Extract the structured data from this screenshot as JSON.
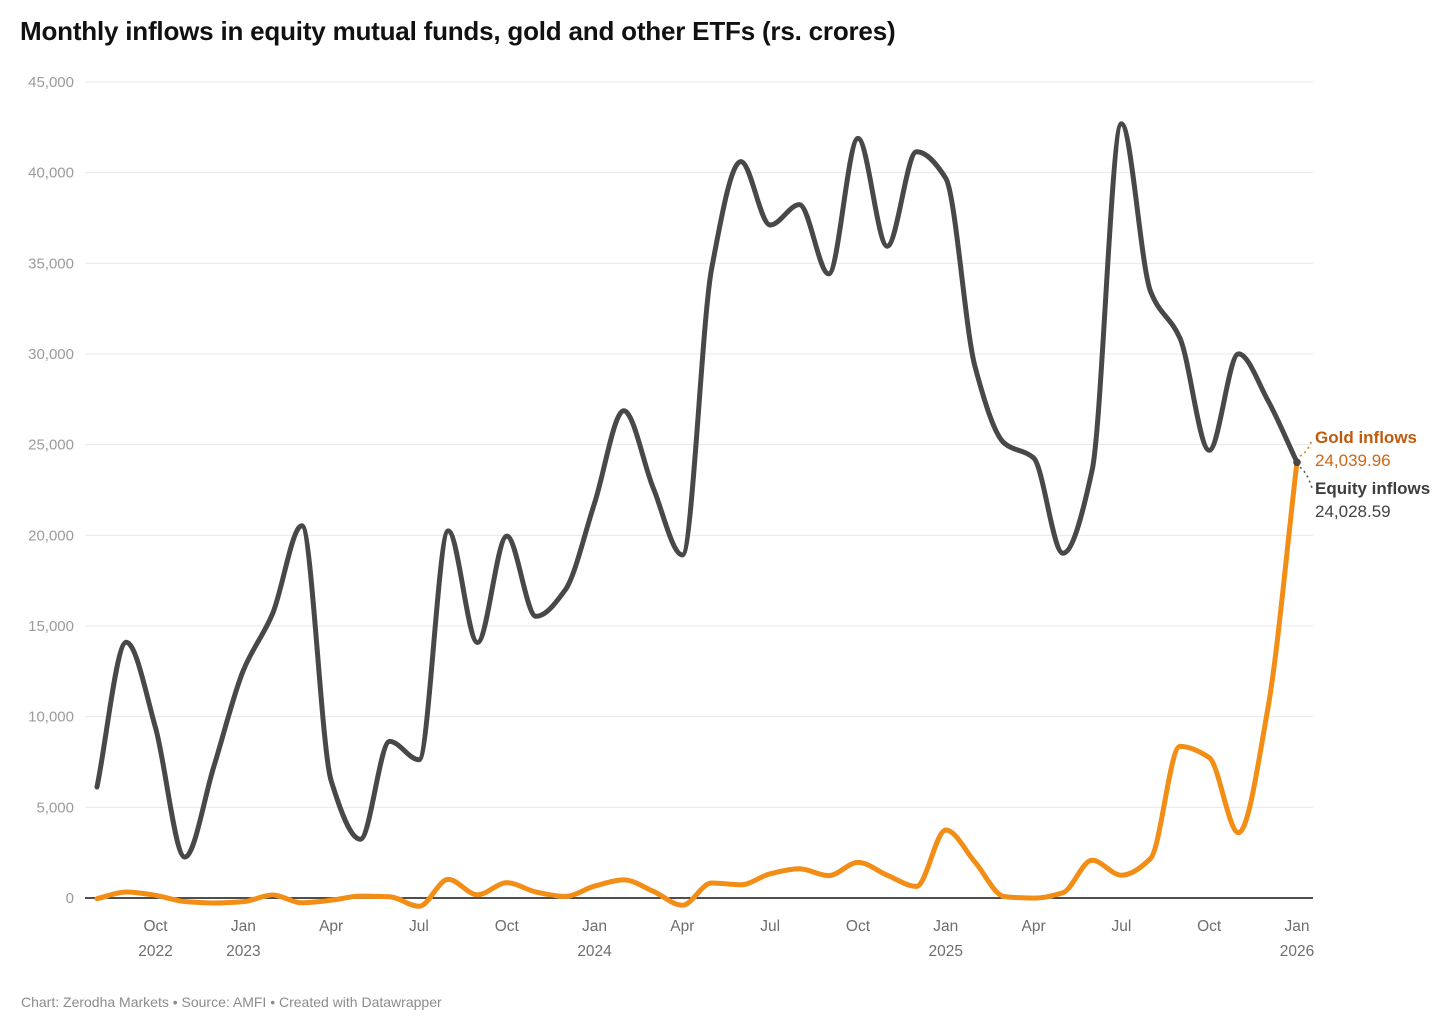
{
  "title": "Monthly inflows in equity mutual funds, gold and other ETFs (rs. crores)",
  "footer": "Chart: Zerodha Markets • Source: AMFI • Created with Datawrapper",
  "end_labels": {
    "gold": {
      "label": "Gold inflows",
      "value": "24,039.96"
    },
    "equity": {
      "label": "Equity inflows",
      "value": "24,028.59"
    }
  },
  "colors": {
    "equity_line": "#484848",
    "gold_line": "#F28D15",
    "grid": "#E8E8E8",
    "axis": "#141414",
    "y_tick_text": "#9B9B9B",
    "x_tick_text": "#6E6E6E",
    "gold_leader": "#D97A16",
    "equity_leader": "#555555"
  },
  "chart_data": {
    "type": "line",
    "title": "Monthly inflows in equity mutual funds, gold and other ETFs (rs. crores)",
    "xlabel": "",
    "ylabel": "",
    "ylim": [
      0,
      45000
    ],
    "grid": "horizontal",
    "legend_position": "end-of-line labels at right",
    "y_ticks": [
      0,
      5000,
      10000,
      15000,
      20000,
      25000,
      30000,
      35000,
      40000,
      45000
    ],
    "x": [
      "Aug 2022",
      "Sep 2022",
      "Oct 2022",
      "Nov 2022",
      "Dec 2022",
      "Jan 2023",
      "Feb 2023",
      "Mar 2023",
      "Apr 2023",
      "May 2023",
      "Jun 2023",
      "Jul 2023",
      "Aug 2023",
      "Sep 2023",
      "Oct 2023",
      "Nov 2023",
      "Dec 2023",
      "Jan 2024",
      "Feb 2024",
      "Mar 2024",
      "Apr 2024",
      "May 2024",
      "Jun 2024",
      "Jul 2024",
      "Aug 2024",
      "Sep 2024",
      "Oct 2024",
      "Nov 2024",
      "Dec 2024",
      "Jan 2025",
      "Feb 2025",
      "Mar 2025",
      "Apr 2025",
      "May 2025",
      "Jun 2025",
      "Jul 2025",
      "Aug 2025",
      "Sep 2025",
      "Oct 2025",
      "Nov 2025",
      "Dec 2025",
      "Jan 2026"
    ],
    "x_ticks": [
      {
        "index": 2,
        "month": "Oct",
        "year": "2022"
      },
      {
        "index": 5,
        "month": "Jan",
        "year": "2023"
      },
      {
        "index": 8,
        "month": "Apr",
        "year": ""
      },
      {
        "index": 11,
        "month": "Jul",
        "year": ""
      },
      {
        "index": 14,
        "month": "Oct",
        "year": ""
      },
      {
        "index": 17,
        "month": "Jan",
        "year": "2024"
      },
      {
        "index": 20,
        "month": "Apr",
        "year": ""
      },
      {
        "index": 23,
        "month": "Jul",
        "year": ""
      },
      {
        "index": 26,
        "month": "Oct",
        "year": ""
      },
      {
        "index": 29,
        "month": "Jan",
        "year": "2025"
      },
      {
        "index": 32,
        "month": "Apr",
        "year": ""
      },
      {
        "index": 35,
        "month": "Jul",
        "year": ""
      },
      {
        "index": 38,
        "month": "Oct",
        "year": ""
      },
      {
        "index": 41,
        "month": "Jan",
        "year": "2026"
      }
    ],
    "series": [
      {
        "name": "Equity inflows",
        "color": "#484848",
        "values": [
          6120,
          14100,
          9390,
          2258,
          7303,
          12546,
          15686,
          20534,
          6480,
          3240,
          8637,
          7626,
          20245,
          14091,
          19957,
          15536,
          16997,
          21781,
          26866,
          22633,
          18917,
          34697,
          40608,
          37113,
          38239,
          34419,
          41887,
          35943,
          41156,
          39688,
          29303,
          25082,
          24269,
          19013,
          23587,
          42702,
          33430,
          30881,
          24690,
          30006,
          27459,
          24028.59
        ]
      },
      {
        "name": "Gold inflows",
        "color": "#F28D15",
        "values": [
          -38,
          330,
          147,
          -195,
          -273,
          -199,
          165,
          -266,
          -124,
          103,
          70,
          -456,
          1028,
          175,
          841,
          333,
          88,
          657,
          997,
          373,
          -396,
          827,
          726,
          1337,
          1611,
          1233,
          1961,
          1257,
          640,
          3751,
          1980,
          77,
          -6,
          292,
          2081,
          1256,
          2190,
          8363,
          7743,
          3600,
          10400,
          24039.96
        ]
      }
    ]
  }
}
